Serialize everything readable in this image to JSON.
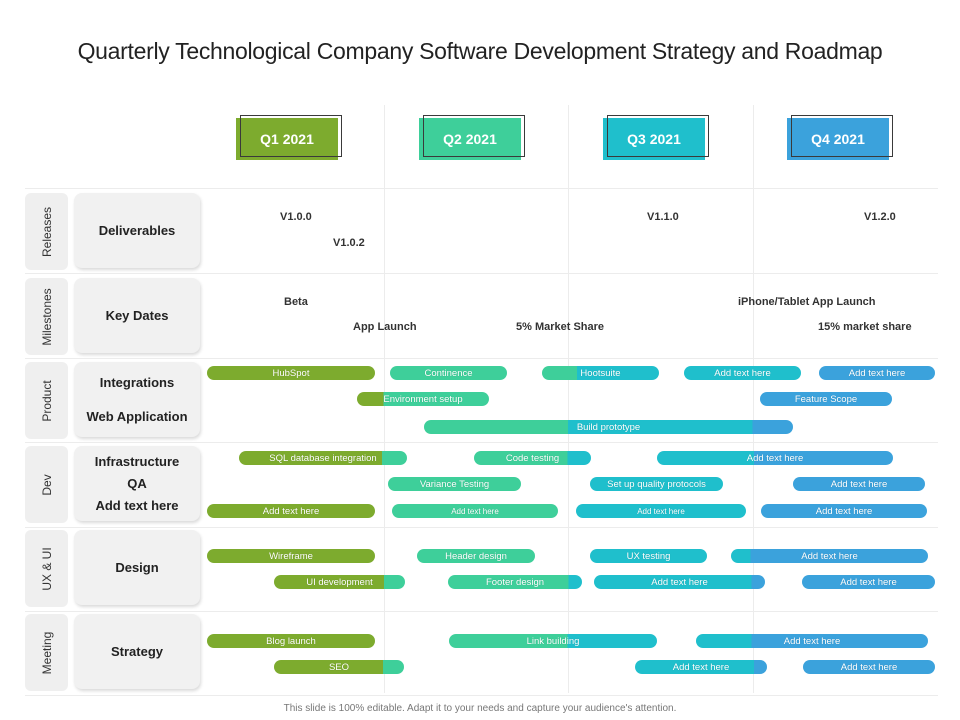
{
  "title": "Quarterly Technological Company Software Development Strategy and Roadmap",
  "colors": {
    "q1": "#7dab2e",
    "q2": "#3ecf9a",
    "q3": "#1fbfcc",
    "q4": "#3ba2dc"
  },
  "quarters": [
    "Q1 2021",
    "Q2 2021",
    "Q3 2021",
    "Q4 2021"
  ],
  "rows": [
    {
      "label": "Releases",
      "categories": [
        "Deliverables"
      ]
    },
    {
      "label": "Milestones",
      "categories": [
        "Key Dates"
      ]
    },
    {
      "label": "Product",
      "categories": [
        "Integrations",
        "Web Application"
      ]
    },
    {
      "label": "Dev",
      "categories": [
        "Infrastructure",
        "QA",
        "Add text here"
      ]
    },
    {
      "label": "UX & UI",
      "categories": [
        "Design"
      ]
    },
    {
      "label": "Meeting",
      "categories": [
        "Strategy"
      ]
    }
  ],
  "texts": {
    "releases": [
      "V1.0.0",
      "V1.0.2",
      "V1.1.0",
      "V1.2.0"
    ],
    "milestones": [
      "Beta",
      "App Launch",
      "5% Market Share",
      "iPhone/Tablet App Launch",
      "15% market share"
    ]
  },
  "bars": {
    "product": [
      "HubSpot",
      "Continence",
      "Hootsuite",
      "Add text here",
      "Add text here",
      "Environment setup",
      "Feature Scope",
      "Build prototype"
    ],
    "dev": [
      "SQL database integration",
      "Code testing",
      "Add text here",
      "Variance Testing",
      "Set up quality protocols",
      "Add text here",
      "Add text here",
      "Add text here",
      "Add text here",
      "Add text here"
    ],
    "ux": [
      "Wireframe",
      "Header design",
      "UX testing",
      "Add text here",
      "UI development",
      "Footer design",
      "Add text here",
      "Add text here"
    ],
    "meeting": [
      "Blog launch",
      "Link building",
      "Add text here",
      "SEO",
      "Add text here",
      "Add text here"
    ]
  },
  "footer": "This slide is 100% editable.  Adapt it to your needs and capture your audience's attention."
}
